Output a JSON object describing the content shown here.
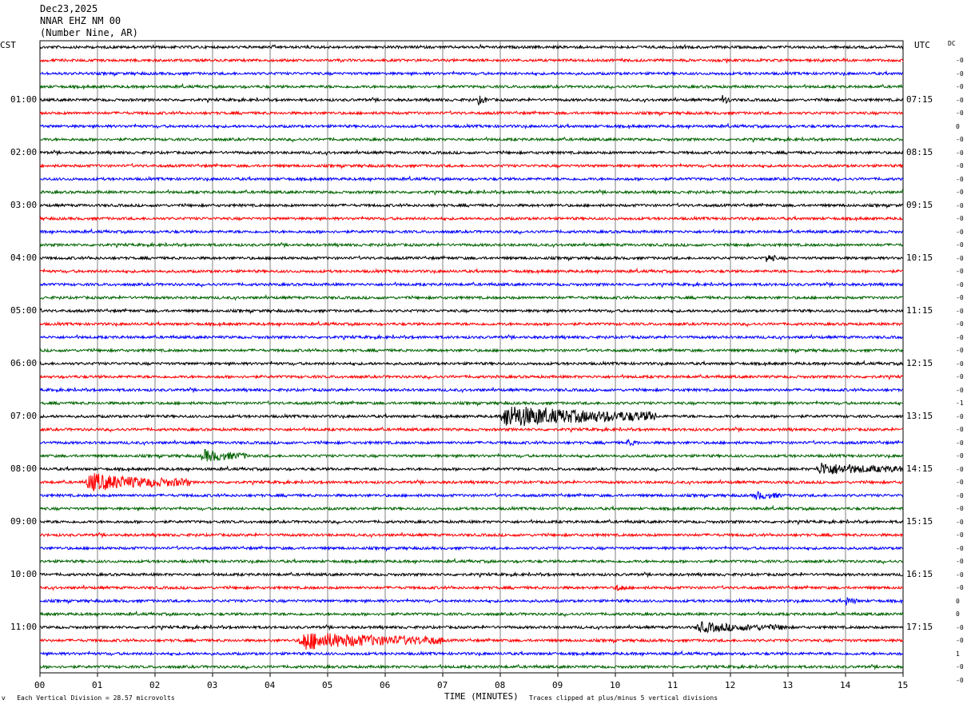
{
  "header": {
    "date": "Dec23,2025",
    "station": "NNAR EHZ NM 00",
    "location": "(Number Nine, AR)"
  },
  "left_axis_label": "CST",
  "right_axis_label": "UTC",
  "dc_label": "DC",
  "colors": {
    "black": "#000000",
    "red": "#ff0000",
    "blue": "#0000ff",
    "green": "#006400",
    "grid": "#808080"
  },
  "chart_data": {
    "type": "line",
    "description_scale": "Each Vertical Division = 28.57 microvolts",
    "clip_note": "Traces clipped at plus/minus 5 vertical divisions",
    "xlabel": "TIME (MINUTES)",
    "xlim": [
      0,
      15
    ],
    "x_ticks": [
      "00",
      "01",
      "02",
      "03",
      "04",
      "05",
      "06",
      "07",
      "08",
      "09",
      "10",
      "11",
      "12",
      "13",
      "14",
      "15"
    ],
    "trace_count": 48,
    "trace_colors": [
      "black",
      "red",
      "blue",
      "green"
    ],
    "left_time_labels": [
      {
        "trace": 4,
        "label": "01:00"
      },
      {
        "trace": 8,
        "label": "02:00"
      },
      {
        "trace": 12,
        "label": "03:00"
      },
      {
        "trace": 16,
        "label": "04:00"
      },
      {
        "trace": 20,
        "label": "05:00"
      },
      {
        "trace": 24,
        "label": "06:00"
      },
      {
        "trace": 28,
        "label": "07:00"
      },
      {
        "trace": 32,
        "label": "08:00"
      },
      {
        "trace": 36,
        "label": "09:00"
      },
      {
        "trace": 40,
        "label": "10:00"
      },
      {
        "trace": 44,
        "label": "11:00"
      }
    ],
    "right_time_labels": [
      {
        "trace": 4,
        "label": "07:15"
      },
      {
        "trace": 8,
        "label": "08:15"
      },
      {
        "trace": 12,
        "label": "09:15"
      },
      {
        "trace": 16,
        "label": "10:15"
      },
      {
        "trace": 20,
        "label": "11:15"
      },
      {
        "trace": 24,
        "label": "12:15"
      },
      {
        "trace": 28,
        "label": "13:15"
      },
      {
        "trace": 32,
        "label": "14:15"
      },
      {
        "trace": 36,
        "label": "15:15"
      },
      {
        "trace": 40,
        "label": "16:15"
      },
      {
        "trace": 44,
        "label": "17:15"
      }
    ],
    "dc_offsets": [
      "-0",
      "-0",
      "-0",
      "-0",
      "-0",
      "0",
      "-0",
      "-0",
      "-0",
      "-0",
      "-0",
      "-0",
      "-0",
      "-0",
      "-0",
      "-0",
      "-0",
      "-0",
      "-0",
      "-0",
      "-0",
      "-0",
      "-0",
      "-0",
      "-0",
      "-0",
      "-1",
      "-0",
      "-0",
      "-0",
      "-0",
      "-0",
      "-0",
      "-0",
      "-0",
      "-0",
      "-0",
      "-0",
      "-0",
      "-0",
      "-0",
      "0",
      "0",
      "-0",
      "-0",
      "1",
      "-0",
      "-0"
    ],
    "events": [
      {
        "trace": 28,
        "start_min": 8.0,
        "end_min": 10.7,
        "amplitude": 3.0
      },
      {
        "trace": 31,
        "start_min": 2.8,
        "end_min": 3.6,
        "amplitude": 1.6
      },
      {
        "trace": 32,
        "start_min": 13.5,
        "end_min": 15.0,
        "amplitude": 1.6
      },
      {
        "trace": 33,
        "start_min": 0.8,
        "end_min": 2.6,
        "amplitude": 2.4
      },
      {
        "trace": 45,
        "start_min": 4.5,
        "end_min": 7.0,
        "amplitude": 2.4
      },
      {
        "trace": 44,
        "start_min": 11.4,
        "end_min": 13.0,
        "amplitude": 1.2
      },
      {
        "trace": 4,
        "start_min": 7.6,
        "end_min": 7.8,
        "amplitude": 1.2
      },
      {
        "trace": 4,
        "start_min": 11.85,
        "end_min": 12.0,
        "amplitude": 1.4
      },
      {
        "trace": 16,
        "start_min": 12.6,
        "end_min": 12.8,
        "amplitude": 1.2
      },
      {
        "trace": 34,
        "start_min": 12.4,
        "end_min": 12.9,
        "amplitude": 1.0
      },
      {
        "trace": 41,
        "start_min": 10.0,
        "end_min": 10.2,
        "amplitude": 1.0
      },
      {
        "trace": 42,
        "start_min": 14.0,
        "end_min": 14.2,
        "amplitude": 1.0
      },
      {
        "trace": 30,
        "start_min": 10.2,
        "end_min": 10.4,
        "amplitude": 0.8
      }
    ]
  }
}
